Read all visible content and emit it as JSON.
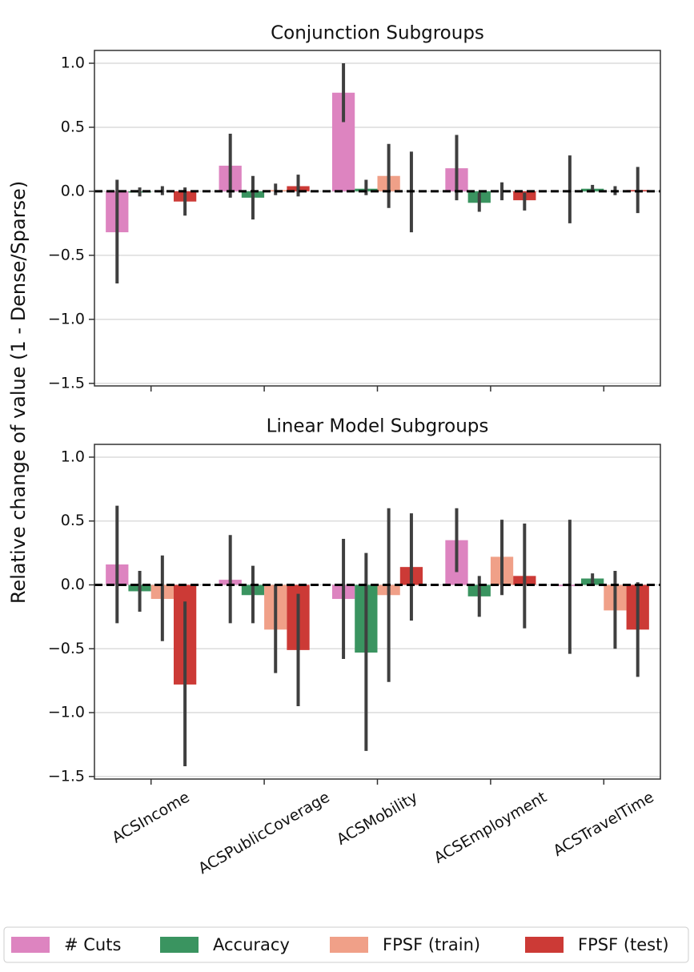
{
  "ylabel": "Relative change of value (1 - Dense/Sparse)",
  "chart_data": [
    {
      "type": "bar",
      "title": "Conjunction Subgroups",
      "categories": [
        null,
        null,
        null,
        null,
        null
      ],
      "ylim": [
        -1.52,
        1.1
      ],
      "yticks": [
        {
          "value": -1.5,
          "label": "−1.5"
        },
        {
          "value": -1.0,
          "label": "−1.0"
        },
        {
          "value": -0.5,
          "label": "−0.5"
        },
        {
          "value": 0,
          "label": "0.0"
        },
        {
          "value": 0.5,
          "label": "0.5"
        },
        {
          "value": 1.0,
          "label": "1.0"
        }
      ],
      "grid": true,
      "series": [
        {
          "name": "# Cuts",
          "color": "#dd84c0",
          "values": [
            -0.32,
            0.2,
            0.77,
            0.18,
            0.0
          ],
          "ci": [
            [
              -0.72,
              0.09
            ],
            [
              -0.05,
              0.45
            ],
            [
              0.54,
              1.0
            ],
            [
              -0.07,
              0.44
            ],
            [
              -0.25,
              0.28
            ]
          ]
        },
        {
          "name": "Accuracy",
          "color": "#3a9460",
          "values": [
            -0.01,
            -0.05,
            0.02,
            -0.09,
            0.02
          ],
          "ci": [
            [
              -0.04,
              0.03
            ],
            [
              -0.22,
              0.12
            ],
            [
              -0.03,
              0.09
            ],
            [
              -0.16,
              -0.01
            ],
            [
              0.0,
              0.05
            ]
          ]
        },
        {
          "name": "FPSF (train)",
          "color": "#f0a088",
          "values": [
            0.0,
            0.01,
            0.12,
            0.0,
            0.0
          ],
          "ci": [
            [
              -0.03,
              0.04
            ],
            [
              -0.03,
              0.06
            ],
            [
              -0.13,
              0.37
            ],
            [
              -0.07,
              0.07
            ],
            [
              -0.03,
              0.04
            ]
          ]
        },
        {
          "name": "FPSF (test)",
          "color": "#cc3a36",
          "values": [
            -0.08,
            0.04,
            0.0,
            -0.07,
            0.01
          ],
          "ci": [
            [
              -0.19,
              0.03
            ],
            [
              -0.04,
              0.13
            ],
            [
              -0.32,
              0.31
            ],
            [
              -0.15,
              -0.01
            ],
            [
              -0.17,
              0.19
            ]
          ]
        }
      ]
    },
    {
      "type": "bar",
      "title": "Linear Model Subgroups",
      "categories": [
        "ACSIncome",
        "ACSPublicCoverage",
        "ACSMobility",
        "ACSEmployment",
        "ACSTravelTime"
      ],
      "ylim": [
        -1.52,
        1.1
      ],
      "yticks": [
        {
          "value": -1.5,
          "label": "−1.5"
        },
        {
          "value": -1.0,
          "label": "−1.0"
        },
        {
          "value": -0.5,
          "label": "−0.5"
        },
        {
          "value": 0,
          "label": "0.0"
        },
        {
          "value": 0.5,
          "label": "0.5"
        },
        {
          "value": 1.0,
          "label": "1.0"
        }
      ],
      "grid": true,
      "series": [
        {
          "name": "# Cuts",
          "color": "#dd84c0",
          "values": [
            0.16,
            0.04,
            -0.11,
            0.35,
            -0.01
          ],
          "ci": [
            [
              -0.3,
              0.62
            ],
            [
              -0.3,
              0.39
            ],
            [
              -0.58,
              0.36
            ],
            [
              0.1,
              0.6
            ],
            [
              -0.54,
              0.51
            ]
          ]
        },
        {
          "name": "Accuracy",
          "color": "#3a9460",
          "values": [
            -0.05,
            -0.08,
            -0.53,
            -0.09,
            0.05
          ],
          "ci": [
            [
              -0.21,
              0.11
            ],
            [
              -0.3,
              0.15
            ],
            [
              -1.3,
              0.25
            ],
            [
              -0.25,
              0.07
            ],
            [
              0.0,
              0.09
            ]
          ]
        },
        {
          "name": "FPSF (train)",
          "color": "#f0a088",
          "values": [
            -0.11,
            -0.35,
            -0.08,
            0.22,
            -0.2
          ],
          "ci": [
            [
              -0.44,
              0.23
            ],
            [
              -0.69,
              0.0
            ],
            [
              -0.76,
              0.6
            ],
            [
              -0.08,
              0.51
            ],
            [
              -0.5,
              0.11
            ]
          ]
        },
        {
          "name": "FPSF (test)",
          "color": "#cc3a36",
          "values": [
            -0.78,
            -0.51,
            0.14,
            0.07,
            -0.35
          ],
          "ci": [
            [
              -1.42,
              -0.13
            ],
            [
              -0.95,
              -0.07
            ],
            [
              -0.28,
              0.56
            ],
            [
              -0.34,
              0.48
            ],
            [
              -0.72,
              0.02
            ]
          ]
        }
      ]
    }
  ]
}
